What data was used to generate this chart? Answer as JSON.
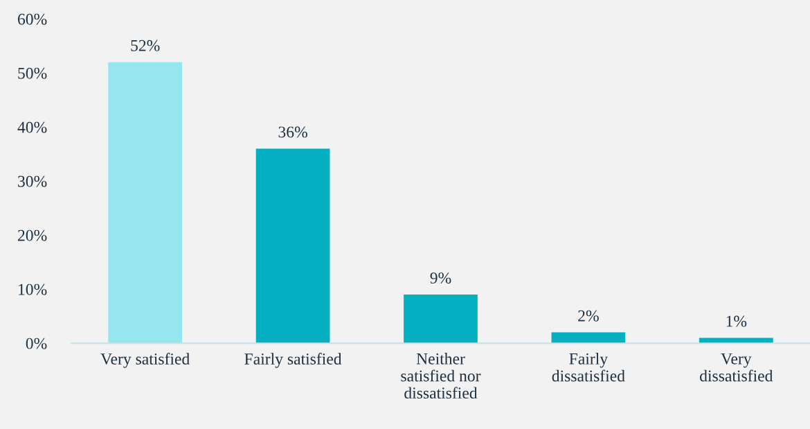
{
  "chart_data": {
    "type": "bar",
    "categories": [
      "Very satisfied",
      "Fairly satisfied",
      "Neither\nsatisfied nor\ndissatisfied",
      "Fairly\ndissatisfied",
      "Very\ndissatisfied"
    ],
    "values": [
      52,
      36,
      9,
      2,
      1
    ],
    "colors": [
      "#96e6f0",
      "#04afc2",
      "#04afc2",
      "#04afc2",
      "#04afc2"
    ],
    "value_labels": [
      "52%",
      "36%",
      "9%",
      "2%",
      "1%"
    ],
    "ylim": [
      0,
      60
    ],
    "yticks": [
      {
        "value": 0,
        "label": "0%"
      },
      {
        "value": 10,
        "label": "10%"
      },
      {
        "value": 20,
        "label": "20%"
      },
      {
        "value": 30,
        "label": "30%"
      },
      {
        "value": 40,
        "label": "40%"
      },
      {
        "value": 50,
        "label": "50%"
      },
      {
        "value": 60,
        "label": "60%"
      }
    ],
    "grid": false,
    "legend": false
  }
}
